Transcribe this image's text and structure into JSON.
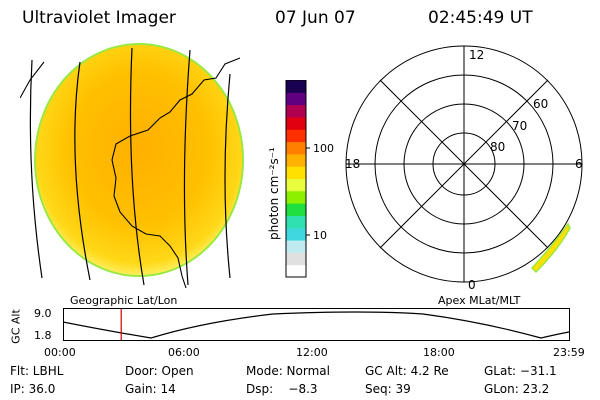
{
  "header": {
    "title": "Ultraviolet Imager",
    "date": "07 Jun 07",
    "time": "02:45:49 UT"
  },
  "colorbar": {
    "label": "photon cm⁻²s⁻¹",
    "ticks": [
      "100",
      "10"
    ],
    "colors": [
      "#ffffff",
      "#e0e0e0",
      "#bfeaf0",
      "#40d8e0",
      "#30e0b0",
      "#20e040",
      "#8cf000",
      "#e8ff40",
      "#ffe000",
      "#ffb000",
      "#ff8000",
      "#ff3000",
      "#e00010",
      "#b00050",
      "#600080",
      "#1a0050"
    ]
  },
  "left_map": {
    "caption": "Geographic Lat/Lon"
  },
  "right_map": {
    "caption": "Apex MLat/MLT",
    "mlt_labels": [
      "12",
      "18",
      "6",
      "0"
    ],
    "lat_labels": [
      "60",
      "70",
      "80"
    ]
  },
  "altitude_plot": {
    "ylabel": "GC Alt",
    "yticks": [
      "9.0",
      "1.8"
    ],
    "xticks": [
      "00:00",
      "06:00",
      "12:00",
      "18:00",
      "23:59"
    ],
    "current_time_hours": 2.76,
    "line_color": "#cc0000"
  },
  "info": {
    "filter": "Flt: LBHL",
    "door": "Door: Open",
    "mode": "Mode: Normal",
    "gc_alt": "GC Alt: 4.2 Re",
    "glat": "GLat: −31.1",
    "ip": "IP: 36.0",
    "gain": "Gain: 14",
    "dsp": "Dsp:    −8.3",
    "seq": "Seq: 39",
    "glon": "GLon: 23.2"
  }
}
